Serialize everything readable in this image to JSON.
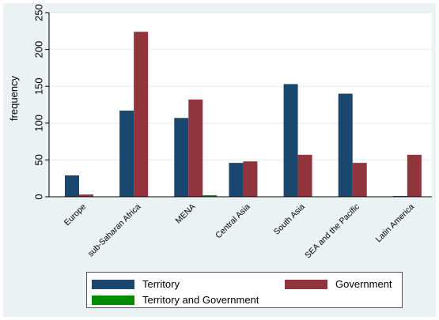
{
  "chart_data": {
    "type": "bar",
    "ylabel": "frequency",
    "xlabel": "",
    "ylim": [
      0,
      250
    ],
    "yticks": [
      0,
      50,
      100,
      150,
      200,
      250
    ],
    "grid": true,
    "legend_position": "bottom",
    "categories": [
      "Europe",
      "sub-Saharan Africa",
      "MENA",
      "Central Asia",
      "South Asia",
      "SEA and the Pacific",
      "Latin America"
    ],
    "series": [
      {
        "name": "Territory",
        "color": "#1a476f",
        "values": [
          29,
          117,
          107,
          46,
          153,
          140,
          1
        ]
      },
      {
        "name": "Government",
        "color": "#90353b",
        "values": [
          3,
          224,
          132,
          48,
          57,
          46,
          57
        ]
      },
      {
        "name": "Territory and Government",
        "color": "#008c00",
        "values": [
          0,
          0,
          2,
          0,
          0,
          0,
          0
        ]
      }
    ]
  }
}
